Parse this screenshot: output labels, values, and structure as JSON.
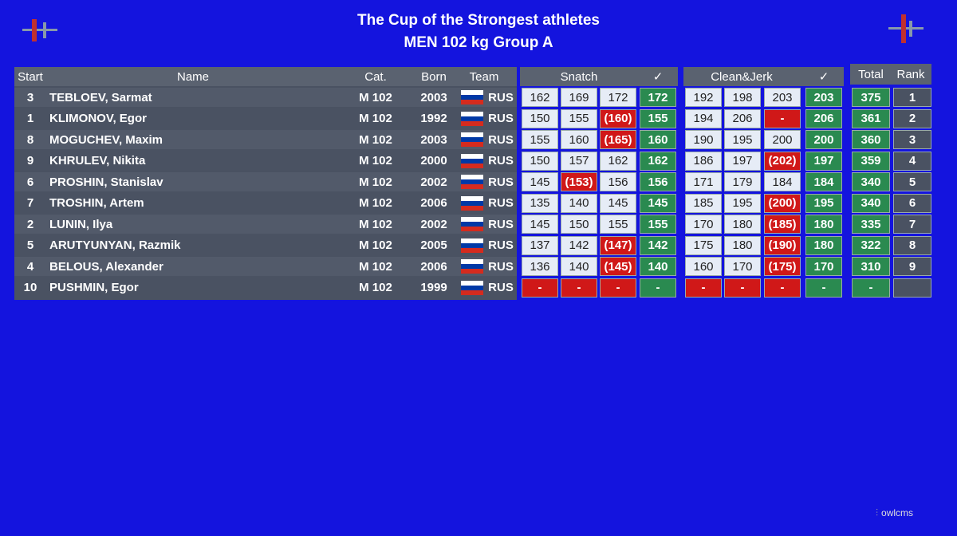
{
  "header": {
    "title": "The Cup of the Strongest athletes",
    "subtitle": "MEN 102 kg Group A"
  },
  "table": {
    "columns": {
      "start": "Start",
      "name": "Name",
      "category": "Cat.",
      "born": "Born",
      "team": "Team",
      "snatch": "Snatch",
      "snatch_check": "✓",
      "clean_jerk": "Clean&Jerk",
      "clean_jerk_check": "✓",
      "total": "Total",
      "rank": "Rank"
    },
    "rows": [
      {
        "start": 3,
        "name": "TEBLOEV, Sarmat",
        "category": "M 102",
        "born": 2003,
        "team": "RUS",
        "snatch": [
          162,
          169,
          172,
          172
        ],
        "clean_jerk": [
          192,
          198,
          203,
          203
        ],
        "total": 375,
        "rank": 1
      },
      {
        "start": 1,
        "name": "KLIMONOV, Egor",
        "category": "M 102",
        "born": 1992,
        "team": "RUS",
        "snatch": [
          150,
          155,
          "(160)",
          155
        ],
        "clean_jerk": [
          194,
          206,
          "-",
          206
        ],
        "total": 361,
        "rank": 2
      },
      {
        "start": 8,
        "name": "MOGUCHEV, Maxim",
        "category": "M 102",
        "born": 2003,
        "team": "RUS",
        "snatch": [
          155,
          160,
          "(165)",
          160
        ],
        "clean_jerk": [
          190,
          195,
          200,
          200
        ],
        "total": 360,
        "rank": 3
      },
      {
        "start": 9,
        "name": "KHRULEV, Nikita",
        "category": "M 102",
        "born": 2000,
        "team": "RUS",
        "snatch": [
          150,
          157,
          162,
          162
        ],
        "clean_jerk": [
          186,
          197,
          "(202)",
          197
        ],
        "total": 359,
        "rank": 4
      },
      {
        "start": 6,
        "name": "PROSHIN, Stanislav",
        "category": "M 102",
        "born": 2002,
        "team": "RUS",
        "snatch": [
          145,
          "(153)",
          156,
          156
        ],
        "clean_jerk": [
          171,
          179,
          184,
          184
        ],
        "total": 340,
        "rank": 5
      },
      {
        "start": 7,
        "name": "TROSHIN, Artem",
        "category": "M 102",
        "born": 2006,
        "team": "RUS",
        "snatch": [
          135,
          140,
          145,
          145
        ],
        "clean_jerk": [
          185,
          195,
          "(200)",
          195
        ],
        "total": 340,
        "rank": 6
      },
      {
        "start": 2,
        "name": "LUNIN, Ilya",
        "category": "M 102",
        "born": 2002,
        "team": "RUS",
        "snatch": [
          145,
          150,
          155,
          155
        ],
        "clean_jerk": [
          170,
          180,
          "(185)",
          180
        ],
        "total": 335,
        "rank": 7
      },
      {
        "start": 5,
        "name": "ARUTYUNYAN, Razmik",
        "category": "M 102",
        "born": 2005,
        "team": "RUS",
        "snatch": [
          137,
          142,
          "(147)",
          142
        ],
        "clean_jerk": [
          175,
          180,
          "(190)",
          180
        ],
        "total": 322,
        "rank": 8
      },
      {
        "start": 4,
        "name": "BELOUS, Alexander",
        "category": "M 102",
        "born": 2006,
        "team": "RUS",
        "snatch": [
          136,
          140,
          "(145)",
          140
        ],
        "clean_jerk": [
          160,
          170,
          "(175)",
          170
        ],
        "total": 310,
        "rank": 9
      },
      {
        "start": 10,
        "name": "PUSHMIN, Egor",
        "category": "M 102",
        "born": 1999,
        "team": "RUS",
        "snatch": [
          "-",
          "-",
          "-",
          "-"
        ],
        "clean_jerk": [
          "-",
          "-",
          "-",
          "-"
        ],
        "total": "-",
        "rank": null
      }
    ]
  },
  "footer": {
    "brand": "owlcms"
  }
}
